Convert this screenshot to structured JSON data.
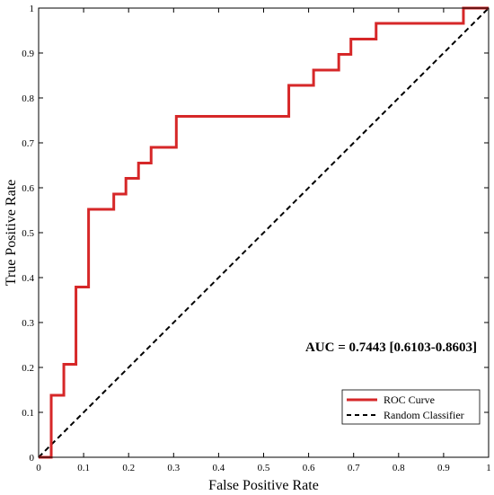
{
  "chart_data": {
    "type": "line",
    "xlabel": "False Positive Rate",
    "ylabel": "True Positive Rate",
    "xlim": [
      0,
      1
    ],
    "ylim": [
      0,
      1
    ],
    "x_ticks": [
      0,
      0.1,
      0.2,
      0.3,
      0.4,
      0.5,
      0.6,
      0.7,
      0.8,
      0.9,
      1
    ],
    "x_tick_labels": [
      "0",
      "0.1",
      "0.2",
      "0.3",
      "0.4",
      "0.5",
      "0.6",
      "0.7",
      "0.8",
      "0.9",
      "1"
    ],
    "y_ticks": [
      0,
      0.1,
      0.2,
      0.3,
      0.4,
      0.5,
      0.6,
      0.7,
      0.8,
      0.9,
      1
    ],
    "y_tick_labels": [
      "0",
      "0.1",
      "0.2",
      "0.3",
      "0.4",
      "0.5",
      "0.6",
      "0.7",
      "0.8",
      "0.9",
      "1"
    ],
    "grid": false,
    "legend_position": "bottom-right",
    "annotation": "AUC = 0.7443  [0.6103-0.8603]",
    "series": [
      {
        "name": "ROC Curve",
        "color": "#d62728",
        "style": "solid",
        "x": [
          0,
          0.028,
          0.028,
          0.056,
          0.056,
          0.083,
          0.083,
          0.111,
          0.111,
          0.167,
          0.167,
          0.194,
          0.194,
          0.222,
          0.222,
          0.25,
          0.25,
          0.306,
          0.306,
          0.556,
          0.556,
          0.611,
          0.611,
          0.667,
          0.667,
          0.694,
          0.694,
          0.75,
          0.75,
          0.944,
          0.944,
          1
        ],
        "y": [
          0,
          0,
          0.138,
          0.138,
          0.207,
          0.207,
          0.379,
          0.379,
          0.552,
          0.552,
          0.586,
          0.586,
          0.621,
          0.621,
          0.655,
          0.655,
          0.69,
          0.69,
          0.759,
          0.759,
          0.828,
          0.828,
          0.862,
          0.862,
          0.897,
          0.897,
          0.931,
          0.931,
          0.966,
          0.966,
          1,
          1
        ]
      },
      {
        "name": "Random Classifier",
        "color": "#000000",
        "style": "dashed",
        "x": [
          0,
          1
        ],
        "y": [
          0,
          1
        ]
      }
    ]
  }
}
